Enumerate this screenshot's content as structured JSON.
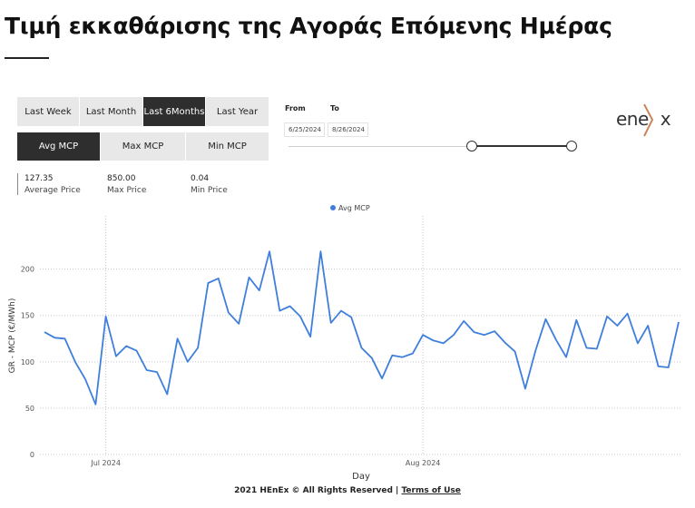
{
  "header": {
    "title": "Τιμή εκκαθάρισης της Αγοράς Επόμενης Ημέρας"
  },
  "period_buttons": [
    {
      "label": "Last Week",
      "active": false
    },
    {
      "label": "Last Month",
      "active": false
    },
    {
      "label": "Last 6Months",
      "active": true
    },
    {
      "label": "Last Year",
      "active": false
    }
  ],
  "metric_buttons": [
    {
      "label": "Avg MCP",
      "active": true
    },
    {
      "label": "Max MCP",
      "active": false
    },
    {
      "label": "Min MCP",
      "active": false
    }
  ],
  "date_range": {
    "from_label": "From",
    "to_label": "To",
    "from_value": "6/25/2024",
    "to_value": "8/26/2024"
  },
  "stats": [
    {
      "value": "127.35",
      "label": "Average Price"
    },
    {
      "value": "850.00",
      "label": "Max Price"
    },
    {
      "value": "0.04",
      "label": "Min Price"
    }
  ],
  "logo": {
    "text": "ene",
    "chevron_color": "#c9865a"
  },
  "chart_data": {
    "type": "line",
    "xlabel": "Day",
    "ylabel": "GR - MCP (€/MWh)",
    "legend": {
      "entries": [
        "Avg MCP"
      ],
      "placement": "top-center"
    },
    "grid": true,
    "ylim": [
      0,
      230
    ],
    "yticks": [
      0,
      50,
      100,
      150,
      200
    ],
    "xlim": [
      "2024-06-25",
      "2024-08-26"
    ],
    "xticks": [
      {
        "date": "2024-07-01",
        "label": "Jul 2024"
      },
      {
        "date": "2024-08-01",
        "label": "Aug 2024"
      }
    ],
    "series": [
      {
        "name": "Avg MCP",
        "color": "#3f7fdc",
        "x": [
          "2024-06-25",
          "2024-06-26",
          "2024-06-27",
          "2024-06-28",
          "2024-06-29",
          "2024-06-30",
          "2024-07-01",
          "2024-07-02",
          "2024-07-03",
          "2024-07-04",
          "2024-07-05",
          "2024-07-06",
          "2024-07-07",
          "2024-07-08",
          "2024-07-09",
          "2024-07-10",
          "2024-07-11",
          "2024-07-12",
          "2024-07-13",
          "2024-07-14",
          "2024-07-15",
          "2024-07-16",
          "2024-07-17",
          "2024-07-18",
          "2024-07-19",
          "2024-07-20",
          "2024-07-21",
          "2024-07-22",
          "2024-07-23",
          "2024-07-24",
          "2024-07-25",
          "2024-07-26",
          "2024-07-27",
          "2024-07-28",
          "2024-07-29",
          "2024-07-30",
          "2024-07-31",
          "2024-08-01",
          "2024-08-02",
          "2024-08-03",
          "2024-08-04",
          "2024-08-05",
          "2024-08-06",
          "2024-08-07",
          "2024-08-08",
          "2024-08-09",
          "2024-08-10",
          "2024-08-11",
          "2024-08-12",
          "2024-08-13",
          "2024-08-14",
          "2024-08-15",
          "2024-08-16",
          "2024-08-17",
          "2024-08-18",
          "2024-08-19",
          "2024-08-20",
          "2024-08-21",
          "2024-08-22",
          "2024-08-23",
          "2024-08-24",
          "2024-08-25",
          "2024-08-26"
        ],
        "values": [
          132,
          126,
          125,
          100,
          81,
          54,
          149,
          106,
          117,
          112,
          91,
          89,
          65,
          125,
          100,
          115,
          185,
          190,
          153,
          141,
          191,
          177,
          219,
          155,
          160,
          149,
          127,
          219,
          142,
          155,
          148,
          115,
          104,
          82,
          107,
          105,
          109,
          129,
          123,
          120,
          129,
          144,
          132,
          129,
          133,
          121,
          111,
          71,
          112,
          146,
          124,
          105,
          145,
          115,
          114,
          149,
          139,
          152,
          120,
          139,
          95,
          94,
          143
        ]
      }
    ]
  },
  "footer": {
    "text": "2021 HEnEx © All Rights Reserved | ",
    "link": "Terms of Use"
  }
}
